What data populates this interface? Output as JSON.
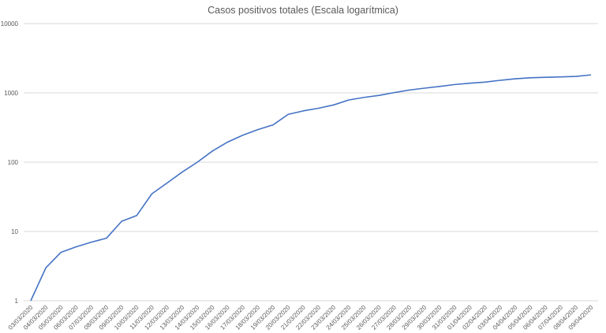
{
  "chart_data": {
    "type": "line",
    "title": "Casos positivos totales (Escala logarítmica)",
    "xlabel": "",
    "ylabel": "",
    "y_scale": "log",
    "ylim": [
      1,
      10000
    ],
    "y_ticks": [
      "1",
      "10",
      "100",
      "1000",
      "10000"
    ],
    "grid": true,
    "line_color": "#4472c4",
    "categories": [
      "03/03/2020",
      "04/03/2020",
      "05/03/2020",
      "06/03/2020",
      "07/03/2020",
      "08/03/2020",
      "09/03/2020",
      "10/03/2020",
      "11/03/2020",
      "12/03/2020",
      "13/03/2020",
      "14/03/2020",
      "15/03/2020",
      "16/03/2020",
      "17/03/2020",
      "18/03/2020",
      "19/03/2020",
      "20/03/2020",
      "21/03/2020",
      "22/03/2020",
      "23/03/2020",
      "24/03/2020",
      "25/03/2020",
      "26/03/2020",
      "27/03/2020",
      "28/03/2020",
      "29/03/2020",
      "30/03/2020",
      "31/03/2020",
      "01/04/2020",
      "02/04/2020",
      "03/04/2020",
      "04/04/2020",
      "05/04/2020",
      "06/04/2020",
      "07/04/2020",
      "08/04/2020",
      "09/04/2020"
    ],
    "series": [
      {
        "values": [
          1,
          3,
          5,
          6,
          7,
          8,
          14,
          17,
          35,
          50,
          72,
          100,
          145,
          195,
          245,
          295,
          345,
          490,
          550,
          600,
          670,
          790,
          860,
          920,
          1010,
          1100,
          1170,
          1240,
          1320,
          1380,
          1430,
          1520,
          1600,
          1650,
          1680,
          1700,
          1730,
          1820
        ]
      }
    ]
  }
}
